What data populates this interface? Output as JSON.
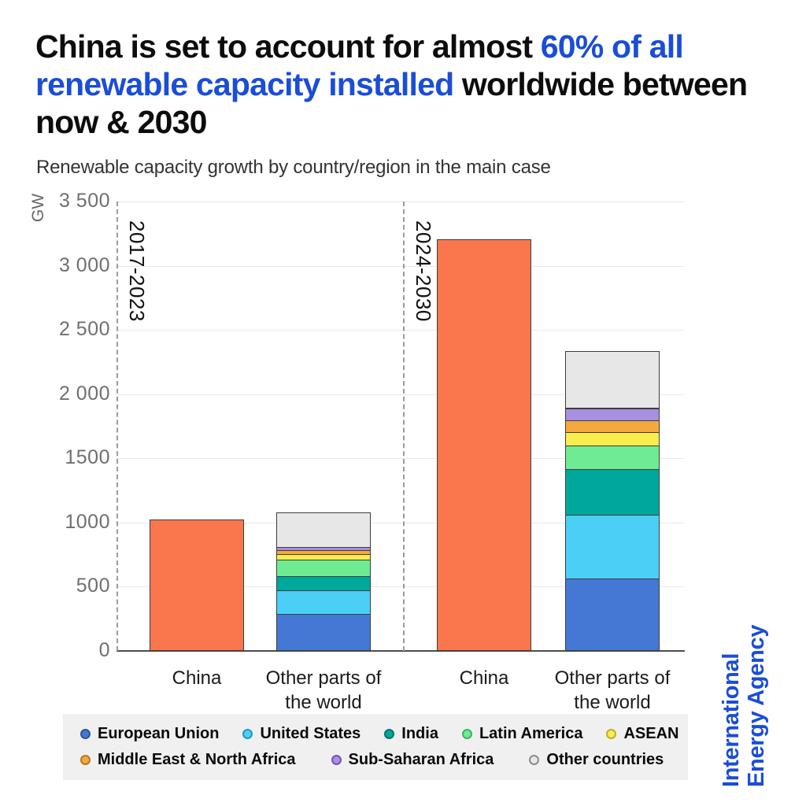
{
  "header": {
    "title_part1": "China is set to account for almost ",
    "title_highlight": "60% of all renewable capacity installed",
    "title_part3": " worldwide between now & 2030",
    "subtitle": "Renewable capacity growth by country/region in the main case"
  },
  "branding": {
    "line1": "International",
    "line2": "Energy Agency",
    "color": "#1a4dd8"
  },
  "chart_data": {
    "type": "bar",
    "stacked": true,
    "title": "Renewable capacity growth by country/region in the main case",
    "xlabel": "",
    "ylabel": "GW",
    "ylim": [
      0,
      3500
    ],
    "grid": true,
    "legend_position": "bottom",
    "yticks": [
      {
        "value": 0,
        "label": "0"
      },
      {
        "value": 500,
        "label": "500"
      },
      {
        "value": 1000,
        "label": "1000"
      },
      {
        "value": 1500,
        "label": "1500"
      },
      {
        "value": 2000,
        "label": "2 000"
      },
      {
        "value": 2500,
        "label": "2 500"
      },
      {
        "value": 3000,
        "label": "3 000"
      },
      {
        "value": 3500,
        "label": "3 500"
      }
    ],
    "periods": [
      {
        "label": "2017-2023"
      },
      {
        "label": "2024-2030"
      }
    ],
    "categories": [
      "China",
      "Other parts of the world",
      "China",
      "Other parts of the world"
    ],
    "bars": [
      {
        "period": "2017-2023",
        "category": "China",
        "total": 1020,
        "segments": [
          {
            "name": "China",
            "value": 1020
          }
        ]
      },
      {
        "period": "2017-2023",
        "category": "Other parts of the world",
        "total": 1070,
        "segments": [
          {
            "name": "European Union",
            "value": 280
          },
          {
            "name": "United States",
            "value": 185
          },
          {
            "name": "India",
            "value": 110
          },
          {
            "name": "Latin America",
            "value": 130
          },
          {
            "name": "ASEAN",
            "value": 45
          },
          {
            "name": "Middle East & North Africa",
            "value": 30
          },
          {
            "name": "Sub-Saharan Africa",
            "value": 25
          },
          {
            "name": "Other countries",
            "value": 265
          }
        ]
      },
      {
        "period": "2024-2030",
        "category": "China",
        "total": 3200,
        "segments": [
          {
            "name": "China",
            "value": 3200
          }
        ]
      },
      {
        "period": "2024-2030",
        "category": "Other parts of the world",
        "total": 2330,
        "segments": [
          {
            "name": "European Union",
            "value": 560
          },
          {
            "name": "United States",
            "value": 495
          },
          {
            "name": "India",
            "value": 355
          },
          {
            "name": "Latin America",
            "value": 185
          },
          {
            "name": "ASEAN",
            "value": 100
          },
          {
            "name": "Middle East & North Africa",
            "value": 95
          },
          {
            "name": "Sub-Saharan Africa",
            "value": 95
          },
          {
            "name": "Other countries",
            "value": 445
          }
        ]
      }
    ],
    "colors": {
      "China": "#fa764d",
      "European Union": "#4478d4",
      "United States": "#4bcff7",
      "India": "#00a79b",
      "Latin America": "#6eeb93",
      "ASEAN": "#f9ed4e",
      "Middle East & North Africa": "#f4a93e",
      "Sub-Saharan Africa": "#a88fdf",
      "Other countries": "#e7e7e7"
    },
    "legend_rings": {
      "European Union": "#2d5596",
      "United States": "#2596bd",
      "India": "#00756b",
      "Latin America": "#41b065",
      "ASEAN": "#bdb028",
      "Middle East & North Africa": "#b5791f",
      "Sub-Saharan Africa": "#7159a8",
      "Other countries": "#8c8c8c"
    },
    "legend": {
      "rows": [
        [
          "European Union",
          "United States",
          "India",
          "Latin America",
          "ASEAN"
        ],
        [
          "Middle East & North Africa",
          "Sub-Saharan Africa",
          "Other countries"
        ]
      ]
    }
  }
}
